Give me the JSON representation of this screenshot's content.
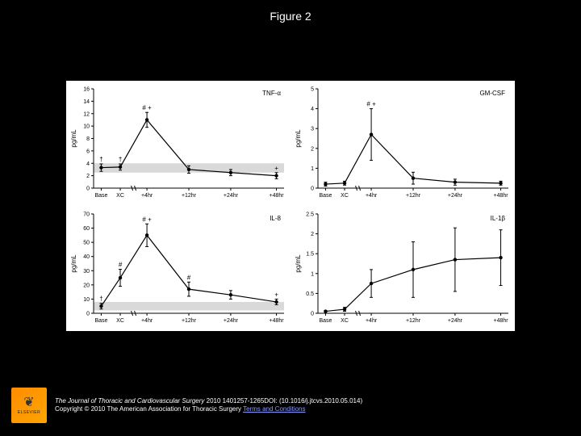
{
  "title": "Figure 2",
  "chart": {
    "background": "#ffffff",
    "page_background": "#000000",
    "line_color": "#000000",
    "marker_color": "#000000",
    "band_color": "#d9d9d9",
    "axis_stroke": "#000000",
    "font_size_ticks": 7,
    "font_size_labels": 8,
    "x_labels": [
      "Base",
      "XC",
      "+4hr",
      "+12hr",
      "+24hr",
      "+48hr"
    ],
    "x_break_after_index": 1,
    "panels": [
      {
        "id": "tnf",
        "title": "TNF-α",
        "ylabel": "pg/mL",
        "ylim": [
          0,
          16
        ],
        "yticks": [
          0,
          2,
          4,
          6,
          8,
          10,
          12,
          14,
          16
        ],
        "band": [
          2.5,
          4.0
        ],
        "series": [
          {
            "x_index": 0,
            "y": 3.3,
            "err": 0.6,
            "ann": "†"
          },
          {
            "x_index": 1,
            "y": 3.4,
            "err": 0.5,
            "ann": "†"
          },
          {
            "x_index": 2,
            "y": 11.0,
            "err": 1.2,
            "ann": "# +"
          },
          {
            "x_index": 3,
            "y": 3.0,
            "err": 0.6,
            "ann": ""
          },
          {
            "x_index": 4,
            "y": 2.5,
            "err": 0.5,
            "ann": ""
          },
          {
            "x_index": 5,
            "y": 2.0,
            "err": 0.5,
            "ann": "+"
          }
        ]
      },
      {
        "id": "gmcsf",
        "title": "GM-CSF",
        "ylabel": "pg/mL",
        "ylim": [
          0,
          5
        ],
        "yticks": [
          0,
          1,
          2,
          3,
          4,
          5
        ],
        "band": null,
        "series": [
          {
            "x_index": 0,
            "y": 0.2,
            "err": 0.1,
            "ann": ""
          },
          {
            "x_index": 1,
            "y": 0.25,
            "err": 0.1,
            "ann": ""
          },
          {
            "x_index": 2,
            "y": 2.7,
            "err": 1.3,
            "ann": "# +"
          },
          {
            "x_index": 3,
            "y": 0.5,
            "err": 0.3,
            "ann": ""
          },
          {
            "x_index": 4,
            "y": 0.3,
            "err": 0.15,
            "ann": ""
          },
          {
            "x_index": 5,
            "y": 0.25,
            "err": 0.1,
            "ann": ""
          }
        ]
      },
      {
        "id": "il8",
        "title": "IL-8",
        "ylabel": "pg/mL",
        "ylim": [
          0,
          70
        ],
        "yticks": [
          0,
          10,
          20,
          30,
          40,
          50,
          60,
          70
        ],
        "band": [
          2,
          8
        ],
        "series": [
          {
            "x_index": 0,
            "y": 5,
            "err": 2,
            "ann": "†"
          },
          {
            "x_index": 1,
            "y": 25,
            "err": 6,
            "ann": "#"
          },
          {
            "x_index": 2,
            "y": 55,
            "err": 8,
            "ann": "# +"
          },
          {
            "x_index": 3,
            "y": 17,
            "err": 5,
            "ann": "#"
          },
          {
            "x_index": 4,
            "y": 13,
            "err": 3,
            "ann": ""
          },
          {
            "x_index": 5,
            "y": 8,
            "err": 2,
            "ann": "+"
          }
        ]
      },
      {
        "id": "il1b",
        "title": "IL-1β",
        "ylabel": "pg/mL",
        "ylim": [
          0,
          2.5
        ],
        "yticks": [
          0,
          0.5,
          1.0,
          1.5,
          2.0,
          2.5
        ],
        "band": null,
        "series": [
          {
            "x_index": 0,
            "y": 0.05,
            "err": 0.02,
            "ann": ""
          },
          {
            "x_index": 1,
            "y": 0.1,
            "err": 0.05,
            "ann": ""
          },
          {
            "x_index": 2,
            "y": 0.75,
            "err": 0.35,
            "ann": ""
          },
          {
            "x_index": 3,
            "y": 1.1,
            "err": 0.7,
            "ann": ""
          },
          {
            "x_index": 4,
            "y": 1.35,
            "err": 0.8,
            "ann": ""
          },
          {
            "x_index": 5,
            "y": 1.4,
            "err": 0.7,
            "ann": ""
          }
        ]
      }
    ]
  },
  "footer": {
    "publisher": "ELSEVIER",
    "journal": "The Journal of Thoracic and Cardiovascular Surgery",
    "citation_tail": " 2010 1401257-1265DOI: (10.1016/j.jtcvs.2010.05.014)",
    "copyright": "Copyright © 2010 The American Association for Thoracic Surgery ",
    "terms": "Terms and Conditions",
    "link_color": "#8899ff"
  }
}
